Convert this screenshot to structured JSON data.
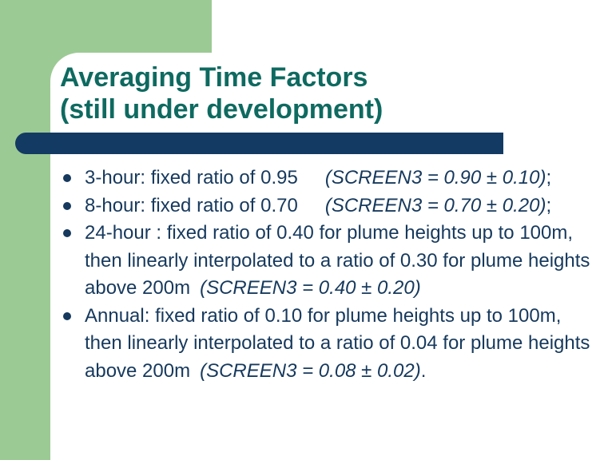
{
  "slide": {
    "title": {
      "line1": "Averaging Time Factors",
      "line2": "(still under development)"
    },
    "bullets": [
      {
        "segments": [
          {
            "text": "3-hour: fixed ratio of 0.95",
            "italic": false
          },
          {
            "text": "(SCREEN3 = 0.90 ± 0.10)",
            "italic": true,
            "gap": "tab"
          },
          {
            "text": ";",
            "italic": false
          }
        ]
      },
      {
        "segments": [
          {
            "text": "8-hour: fixed ratio of 0.70",
            "italic": false
          },
          {
            "text": "(SCREEN3 = 0.70 ± 0.20)",
            "italic": true,
            "gap": "tab"
          },
          {
            "text": ";",
            "italic": false
          }
        ]
      },
      {
        "segments": [
          {
            "text": "24-hour : fixed ratio of 0.40 for plume heights up to 100m, then linearly interpolated to a ratio of 0.30 for plume heights above 200m",
            "italic": false
          },
          {
            "text": "(SCREEN3 = 0.40 ± 0.20)",
            "italic": true,
            "gap": "sm"
          }
        ]
      },
      {
        "segments": [
          {
            "text": "Annual: fixed ratio of 0.10 for plume heights up to 100m, then linearly interpolated to a ratio of 0.04 for plume heights above 200m",
            "italic": false
          },
          {
            "text": "(SCREEN3 = 0.08 ± 0.02)",
            "italic": true,
            "gap": "sm"
          },
          {
            "text": ".",
            "italic": false
          }
        ]
      }
    ],
    "colors": {
      "background_green": "#9CCA94",
      "panel_white": "#FFFFFF",
      "accent_bar_navy": "#133A63",
      "title_teal": "#0E6A60",
      "body_text_navy": "#16395D"
    }
  }
}
